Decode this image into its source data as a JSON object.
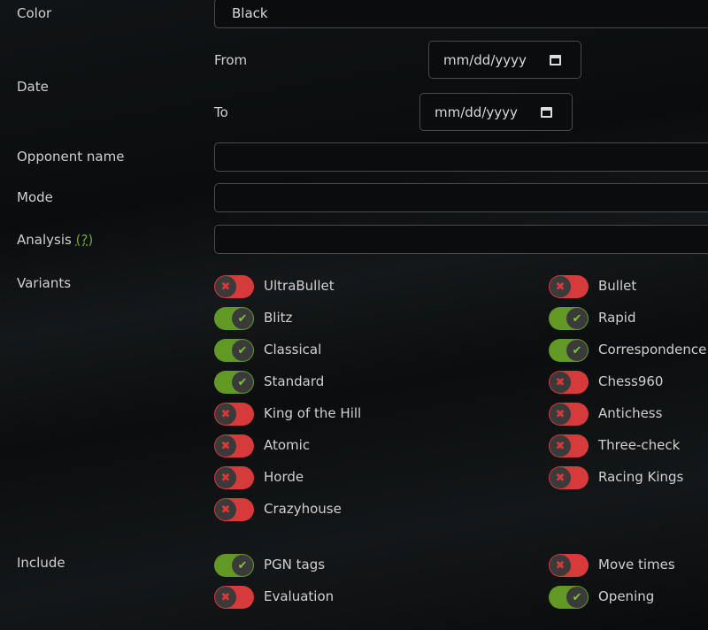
{
  "color": {
    "label": "Color",
    "value": "Black"
  },
  "date": {
    "label": "Date",
    "from_label": "From",
    "to_label": "To",
    "from_placeholder": "mm/dd/yyyy",
    "to_placeholder": "mm/dd/yyyy"
  },
  "opponent": {
    "label": "Opponent name",
    "value": ""
  },
  "mode": {
    "label": "Mode",
    "value": ""
  },
  "analysis": {
    "label": "Analysis",
    "help": "(?)",
    "value": ""
  },
  "variants": {
    "label": "Variants",
    "items": [
      {
        "label": "UltraBullet",
        "on": false
      },
      {
        "label": "Bullet",
        "on": false
      },
      {
        "label": "Blitz",
        "on": true
      },
      {
        "label": "Rapid",
        "on": true
      },
      {
        "label": "Classical",
        "on": true
      },
      {
        "label": "Correspondence",
        "on": true
      },
      {
        "label": "Standard",
        "on": true
      },
      {
        "label": "Chess960",
        "on": false
      },
      {
        "label": "King of the Hill",
        "on": false
      },
      {
        "label": "Antichess",
        "on": false
      },
      {
        "label": "Atomic",
        "on": false
      },
      {
        "label": "Three-check",
        "on": false
      },
      {
        "label": "Horde",
        "on": false
      },
      {
        "label": "Racing Kings",
        "on": false
      },
      {
        "label": "Crazyhouse",
        "on": false
      }
    ]
  },
  "include": {
    "label": "Include",
    "items": [
      {
        "label": "PGN tags",
        "on": true
      },
      {
        "label": "Move times",
        "on": false
      },
      {
        "label": "Evaluation",
        "on": false
      },
      {
        "label": "Opening",
        "on": true
      }
    ]
  },
  "icons": {
    "on": "✔",
    "off": "✖"
  }
}
